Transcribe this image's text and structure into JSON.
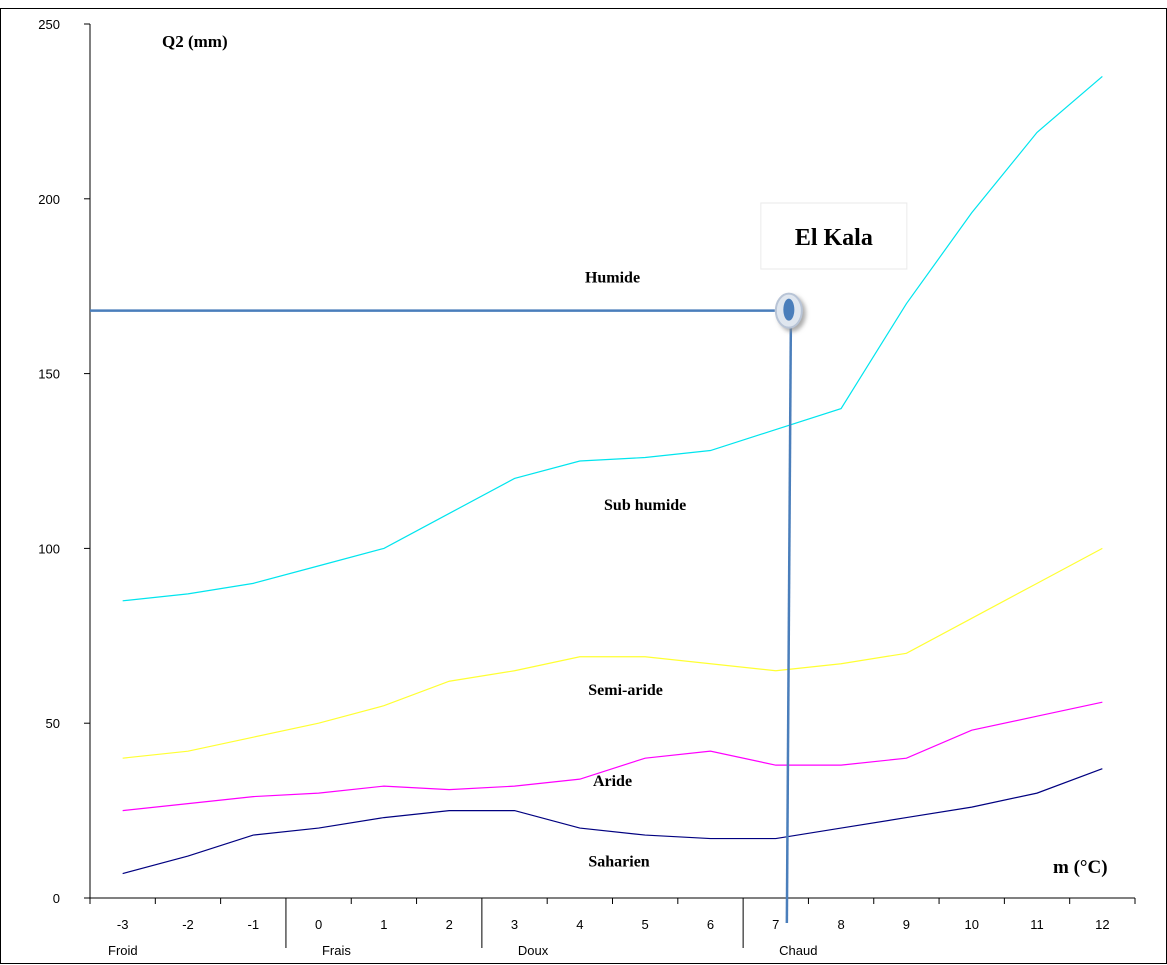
{
  "chart_data": {
    "type": "line",
    "title": "",
    "ylabel": "Q2 (mm)",
    "xlabel": "m (°C)",
    "x": [
      -3,
      -2,
      -1,
      0,
      1,
      2,
      3,
      4,
      5,
      6,
      7,
      8,
      9,
      10,
      11,
      12
    ],
    "xticks": [
      "-3",
      "-2",
      "-1",
      "0",
      "1",
      "2",
      "3",
      "4",
      "5",
      "6",
      "7",
      "8",
      "9",
      "10",
      "11",
      "12"
    ],
    "ylim": [
      0,
      250
    ],
    "yticks": [
      "0",
      "50",
      "100",
      "150",
      "200",
      "250"
    ],
    "grid": false,
    "series": [
      {
        "color": "#00e5ee",
        "values": [
          85,
          87,
          90,
          95,
          100,
          110,
          120,
          125,
          126,
          128,
          134,
          140,
          170,
          196,
          219,
          235
        ]
      },
      {
        "color": "#ffff33",
        "values": [
          40,
          42,
          46,
          50,
          55,
          62,
          65,
          69,
          69,
          67,
          65,
          67,
          70,
          80,
          90,
          100
        ]
      },
      {
        "color": "#ff00ff",
        "values": [
          25,
          27,
          29,
          30,
          32,
          31,
          32,
          34,
          40,
          42,
          38,
          38,
          40,
          48,
          52,
          56
        ]
      },
      {
        "color": "#000080",
        "values": [
          7,
          12,
          18,
          20,
          23,
          25,
          25,
          20,
          18,
          17,
          17,
          20,
          23,
          26,
          30,
          37
        ]
      }
    ],
    "zones": [
      {
        "label": "Humide",
        "x": 4.5,
        "y": 176
      },
      {
        "label": "Sub humide",
        "x": 5.0,
        "y": 111
      },
      {
        "label": "Semi-aride",
        "x": 4.7,
        "y": 58
      },
      {
        "label": "Aride",
        "x": 4.5,
        "y": 32
      },
      {
        "label": "Saharien",
        "x": 4.6,
        "y": 9
      }
    ],
    "temperature_classes": [
      {
        "label": "Froid",
        "from": -3.5,
        "to": -0.5
      },
      {
        "label": "Frais",
        "from": -0.5,
        "to": 2.5
      },
      {
        "label": "Doux",
        "from": 2.5,
        "to": 6.5
      },
      {
        "label": "Chaud",
        "from": 6.5,
        "to": 12.5
      }
    ],
    "station": {
      "name": "El Kala",
      "m": 7.2,
      "q2": 168
    },
    "line_color": "#4a7ebb",
    "marker_color": "#4a7ebb"
  },
  "labels": {
    "ylabel": "Q2 (mm)",
    "xlabel": "m (°C)",
    "station": "El Kala"
  }
}
